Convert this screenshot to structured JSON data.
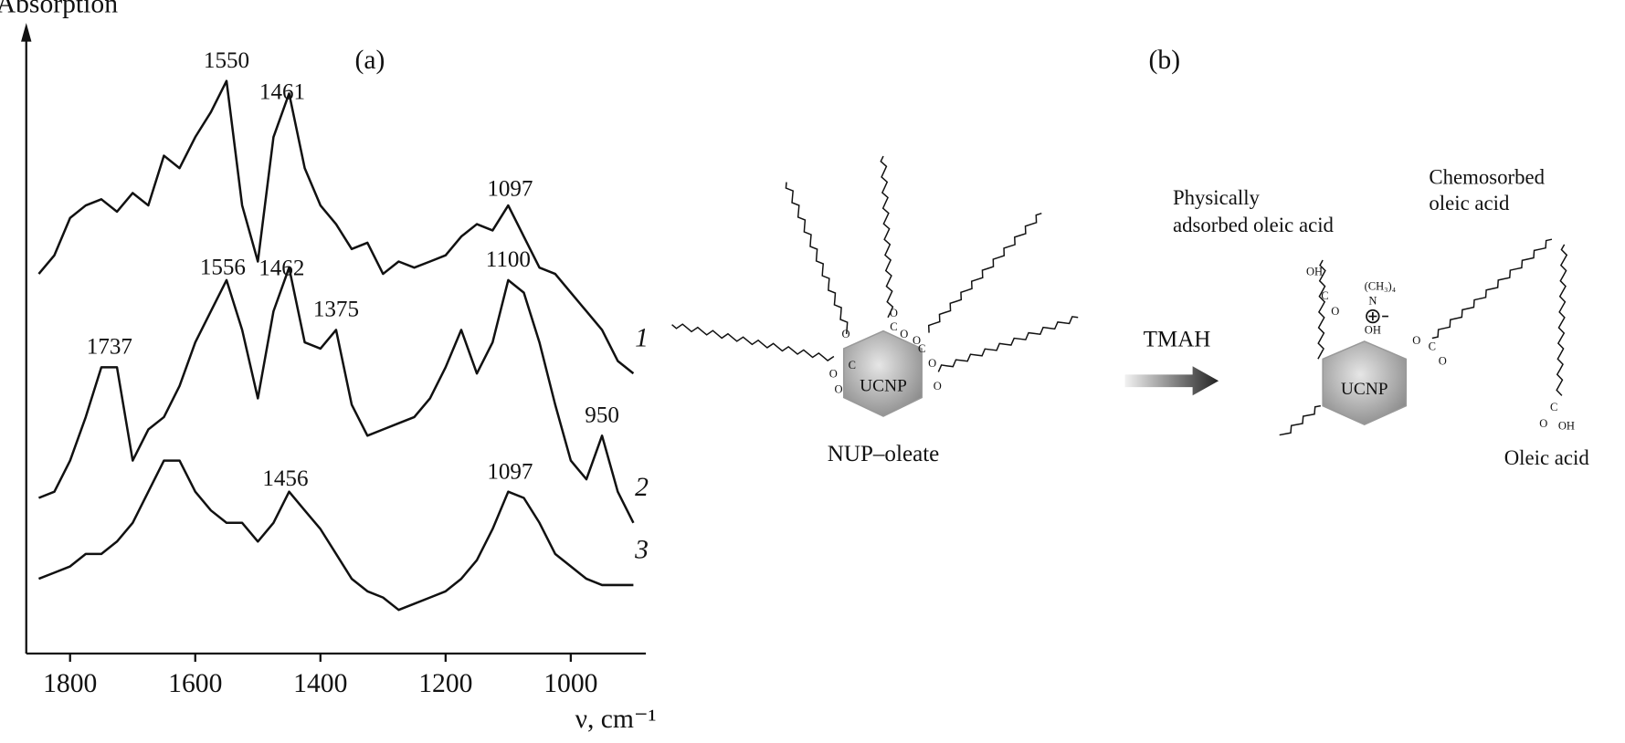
{
  "chart_data": {
    "type": "line",
    "title": "(a)",
    "y_label": "Absorption",
    "x_label": "ν, cm⁻¹",
    "x": [
      1850,
      1825,
      1800,
      1775,
      1750,
      1725,
      1700,
      1675,
      1650,
      1625,
      1600,
      1575,
      1550,
      1525,
      1500,
      1475,
      1450,
      1425,
      1400,
      1375,
      1350,
      1325,
      1300,
      1275,
      1250,
      1225,
      1200,
      1175,
      1150,
      1125,
      1100,
      1075,
      1050,
      1025,
      1000,
      975,
      950,
      925,
      900
    ],
    "series": [
      {
        "name": "1",
        "color": "#111111",
        "peaks": [
          1550,
          1461,
          1097
        ],
        "values": [
          61,
          64,
          70,
          72,
          73,
          71,
          74,
          72,
          80,
          78,
          83,
          87,
          92,
          72,
          63,
          83,
          90,
          78,
          72,
          69,
          65,
          66,
          61,
          63,
          62,
          63,
          64,
          67,
          69,
          68,
          72,
          67,
          62,
          61,
          58,
          55,
          52,
          47,
          45
        ]
      },
      {
        "name": "2",
        "color": "#111111",
        "peaks": [
          1737,
          1556,
          1462,
          1375,
          1100,
          950
        ],
        "values": [
          25,
          26,
          31,
          38,
          46,
          46,
          31,
          36,
          38,
          43,
          50,
          55,
          60,
          52,
          41,
          55,
          62,
          50,
          49,
          52,
          40,
          35,
          36,
          37,
          38,
          41,
          46,
          52,
          45,
          50,
          60,
          58,
          50,
          40,
          31,
          28,
          35,
          26,
          21
        ]
      },
      {
        "name": "3",
        "color": "#111111",
        "peaks": [
          1456,
          1097
        ],
        "values": [
          12,
          13,
          14,
          16,
          16,
          18,
          21,
          26,
          31,
          31,
          26,
          23,
          21,
          21,
          18,
          21,
          26,
          23,
          20,
          16,
          12,
          10,
          9,
          7,
          8,
          9,
          10,
          12,
          15,
          20,
          26,
          25,
          21,
          16,
          14,
          12,
          11,
          11,
          11
        ]
      }
    ],
    "xlim": [
      1870,
      880
    ],
    "xticks": [
      1800,
      1600,
      1400,
      1200,
      1000
    ],
    "ylim": [
      0,
      100
    ],
    "grid": false
  },
  "diagram": {
    "title": "(b)",
    "left_label": "NUP–oleate",
    "core": "UCNP",
    "reagent": "TMAH",
    "physically_adsorbed": [
      "Physically",
      "adsorbed oleic acid"
    ],
    "chemosorbed": [
      "Chemosorbed",
      "oleic acid"
    ],
    "free_acid": "Oleic acid",
    "cation": [
      "(CH₃)₄",
      "N",
      "OH"
    ],
    "atoms": [
      "O",
      "C",
      "OH"
    ]
  }
}
